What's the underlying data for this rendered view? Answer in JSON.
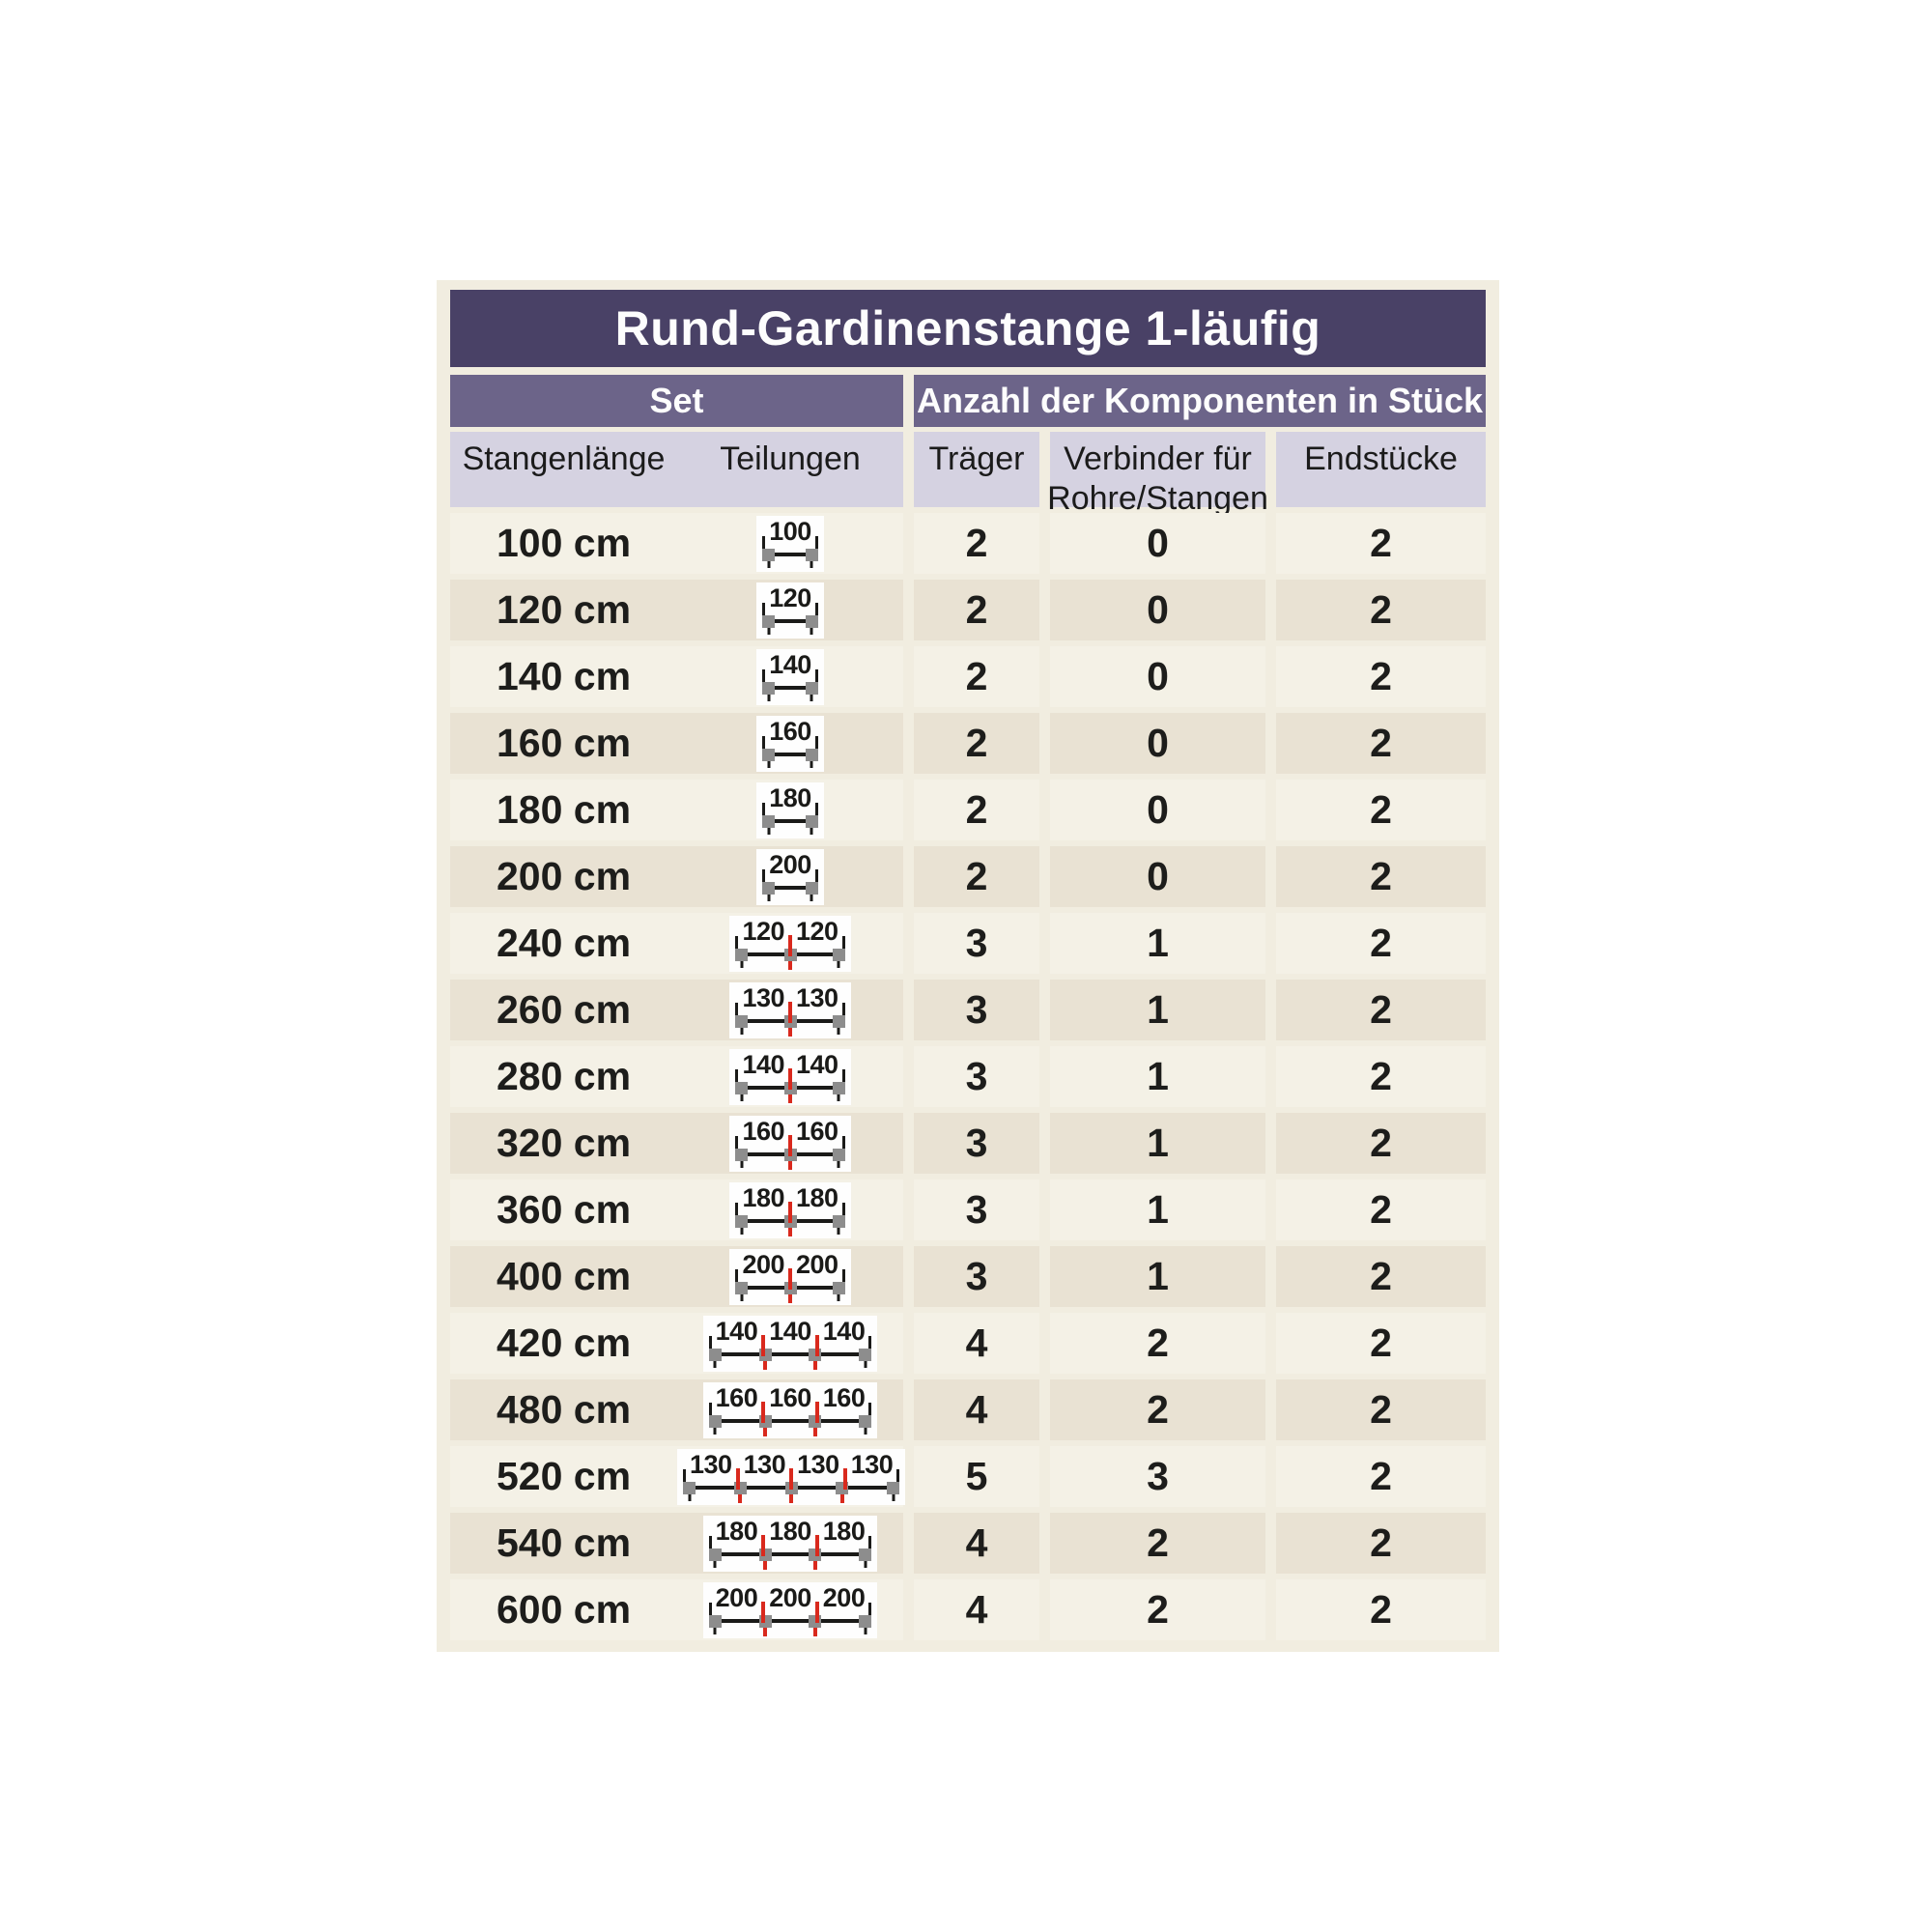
{
  "header": {
    "title": "Rund-Gardinenstange 1-läufig",
    "set_group": "Set",
    "components_group": "Anzahl der Komponenten in Stück"
  },
  "columns": {
    "stangenlaenge": "Stangenlänge",
    "teilungen": "Teilungen",
    "traeger": "Träger",
    "verbinder_line1": "Verbinder für",
    "verbinder_line2": "Rohre/Stangen",
    "endstuecke": "Endstücke"
  },
  "rows": [
    {
      "length": "100 cm",
      "segments": [
        "100"
      ],
      "traeger": "2",
      "verbinder": "0",
      "endstuecke": "2"
    },
    {
      "length": "120 cm",
      "segments": [
        "120"
      ],
      "traeger": "2",
      "verbinder": "0",
      "endstuecke": "2"
    },
    {
      "length": "140 cm",
      "segments": [
        "140"
      ],
      "traeger": "2",
      "verbinder": "0",
      "endstuecke": "2"
    },
    {
      "length": "160 cm",
      "segments": [
        "160"
      ],
      "traeger": "2",
      "verbinder": "0",
      "endstuecke": "2"
    },
    {
      "length": "180 cm",
      "segments": [
        "180"
      ],
      "traeger": "2",
      "verbinder": "0",
      "endstuecke": "2"
    },
    {
      "length": "200 cm",
      "segments": [
        "200"
      ],
      "traeger": "2",
      "verbinder": "0",
      "endstuecke": "2"
    },
    {
      "length": "240 cm",
      "segments": [
        "120",
        "120"
      ],
      "traeger": "3",
      "verbinder": "1",
      "endstuecke": "2"
    },
    {
      "length": "260 cm",
      "segments": [
        "130",
        "130"
      ],
      "traeger": "3",
      "verbinder": "1",
      "endstuecke": "2"
    },
    {
      "length": "280 cm",
      "segments": [
        "140",
        "140"
      ],
      "traeger": "3",
      "verbinder": "1",
      "endstuecke": "2"
    },
    {
      "length": "320 cm",
      "segments": [
        "160",
        "160"
      ],
      "traeger": "3",
      "verbinder": "1",
      "endstuecke": "2"
    },
    {
      "length": "360 cm",
      "segments": [
        "180",
        "180"
      ],
      "traeger": "3",
      "verbinder": "1",
      "endstuecke": "2"
    },
    {
      "length": "400 cm",
      "segments": [
        "200",
        "200"
      ],
      "traeger": "3",
      "verbinder": "1",
      "endstuecke": "2"
    },
    {
      "length": "420 cm",
      "segments": [
        "140",
        "140",
        "140"
      ],
      "traeger": "4",
      "verbinder": "2",
      "endstuecke": "2"
    },
    {
      "length": "480 cm",
      "segments": [
        "160",
        "160",
        "160"
      ],
      "traeger": "4",
      "verbinder": "2",
      "endstuecke": "2"
    },
    {
      "length": "520 cm",
      "segments": [
        "130",
        "130",
        "130",
        "130"
      ],
      "traeger": "5",
      "verbinder": "3",
      "endstuecke": "2"
    },
    {
      "length": "540 cm",
      "segments": [
        "180",
        "180",
        "180"
      ],
      "traeger": "4",
      "verbinder": "2",
      "endstuecke": "2"
    },
    {
      "length": "600 cm",
      "segments": [
        "200",
        "200",
        "200"
      ],
      "traeger": "4",
      "verbinder": "2",
      "endstuecke": "2"
    }
  ],
  "colors": {
    "title_bg": "#494166",
    "group_band_bg": "#6c6489",
    "column_header_bg": "#d5d2e1",
    "row_light": "#f4f1e6",
    "row_dark": "#e9e2d3",
    "panel_bg": "#f1ede0",
    "joint_red": "#d9291d",
    "bracket_gray": "#8d8d8d",
    "text": "#1d1d1b"
  }
}
